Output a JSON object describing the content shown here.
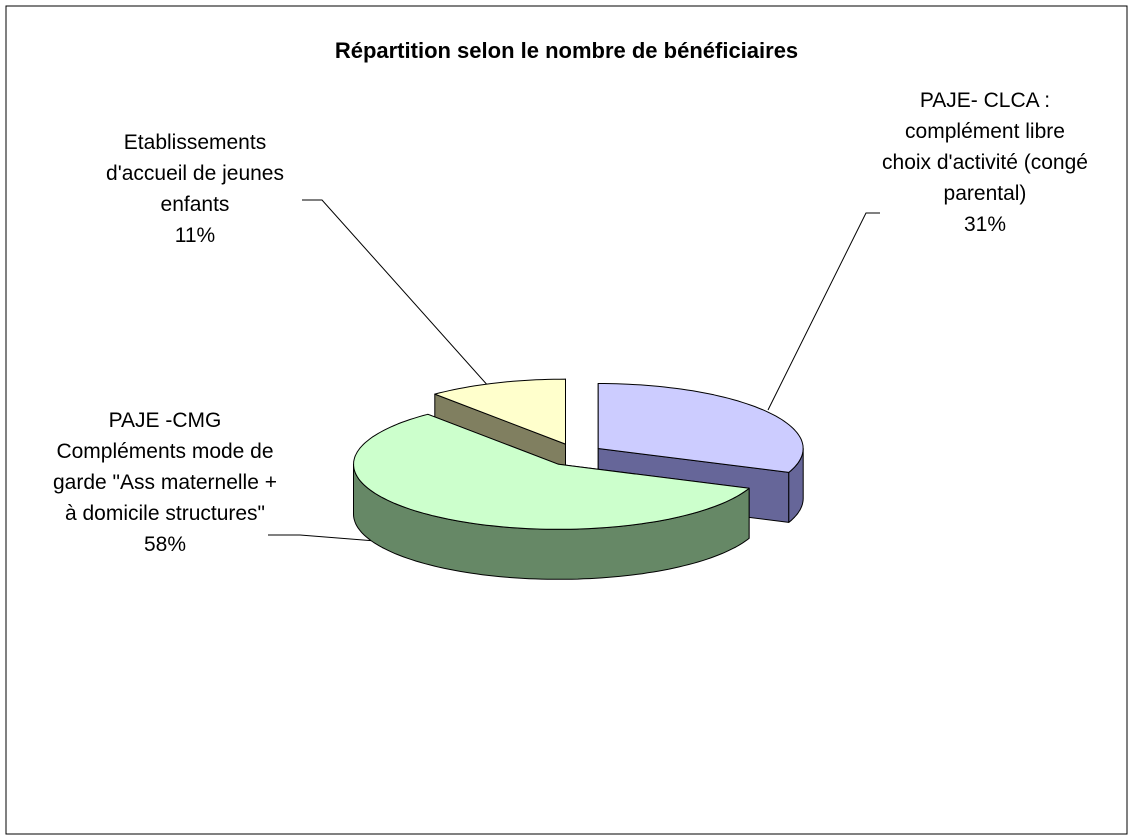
{
  "chart_data": {
    "type": "pie3d",
    "title": "Répartition selon le nombre de bénéficiaires",
    "categories": [
      "PAJE- CLCA : complément libre choix d'activité (congé parental)",
      "PAJE -CMG Compléments mode de garde \"Ass maternelle + à domicile structures\"",
      "Etablissements d'accueil de jeunes enfants"
    ],
    "values": [
      31,
      58,
      11
    ],
    "value_labels": [
      "31%",
      "58%",
      "11%"
    ],
    "colors": [
      "#ccccff",
      "#ccffcc",
      "#ffffcc"
    ],
    "side_colors": [
      "#666699",
      "#668866",
      "#807f60"
    ]
  }
}
